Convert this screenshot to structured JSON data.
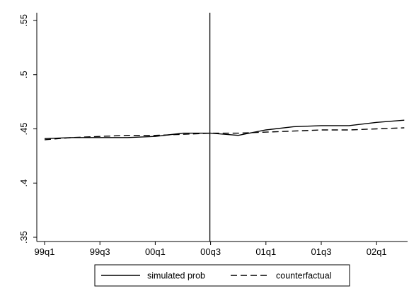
{
  "chart_data": {
    "type": "line",
    "title": "",
    "xlabel": "",
    "ylabel": "",
    "x_ticks": [
      "99q1",
      "99q3",
      "00q1",
      "00q3",
      "01q1",
      "01q3",
      "02q1"
    ],
    "y_ticks": [
      ".35",
      ".4",
      ".45",
      ".5",
      ".55"
    ],
    "y_tick_values": [
      0.35,
      0.4,
      0.45,
      0.5,
      0.55
    ],
    "ylim": [
      0.35,
      0.55
    ],
    "x_quarters": [
      "99q1",
      "99q2",
      "99q3",
      "99q4",
      "00q1",
      "00q2",
      "00q3",
      "00q4",
      "01q1",
      "01q2",
      "01q3",
      "01q4",
      "02q1",
      "02q2"
    ],
    "reference_line_x": "00q3",
    "grid": false,
    "legend_position": "bottom",
    "series": [
      {
        "name": "simulated prob",
        "style": "solid",
        "color": "#000000",
        "values": [
          0.441,
          0.442,
          0.442,
          0.442,
          0.443,
          0.446,
          0.446,
          0.444,
          0.449,
          0.452,
          0.453,
          0.453,
          0.456,
          0.458
        ]
      },
      {
        "name": "counterfactual",
        "style": "dashed",
        "color": "#000000",
        "values": [
          0.44,
          0.442,
          0.443,
          0.444,
          0.444,
          0.445,
          0.446,
          0.446,
          0.447,
          0.448,
          0.449,
          0.449,
          0.45,
          0.451
        ]
      }
    ]
  }
}
